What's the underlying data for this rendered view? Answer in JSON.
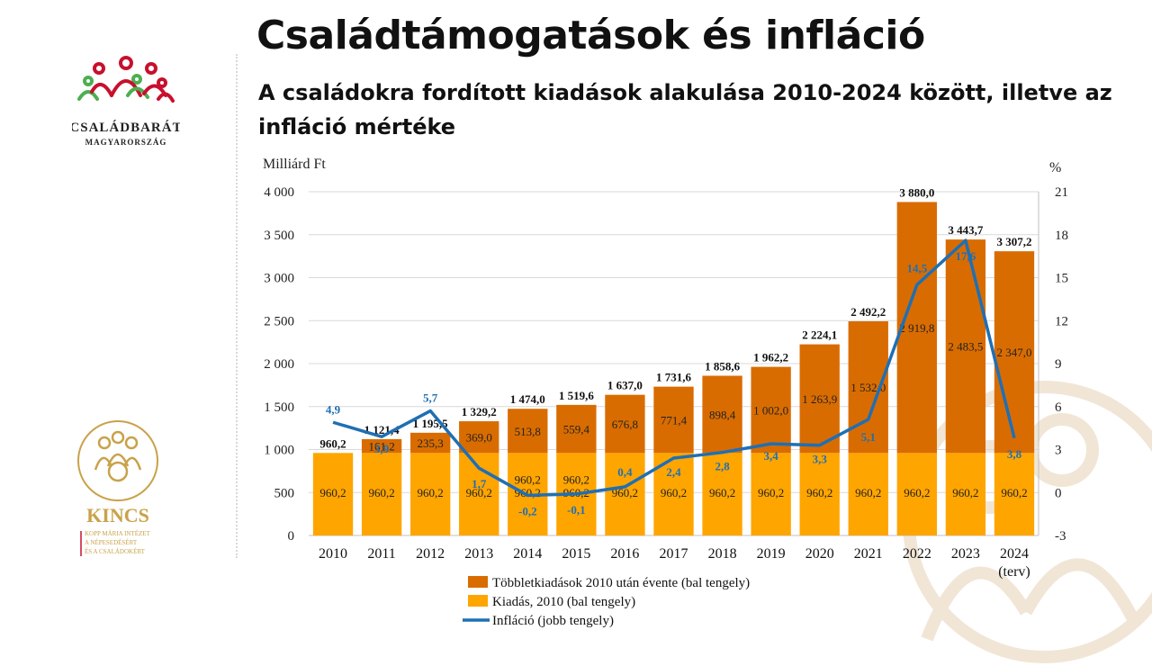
{
  "header": {
    "title": "Családtámogatások és infláció",
    "subtitle": "A családokra fordított kiadások alakulása 2010-2024 között, illetve az infláció mértéke"
  },
  "logos": {
    "top_name": "CSALÁDBARÁT",
    "top_sub": "MAGYARORSZÁG",
    "bottom_name": "KINCS",
    "bottom_sub_1": "KOPP MÁRIA INTÉZET",
    "bottom_sub_2": "A NÉPESEDÉSÉRT",
    "bottom_sub_3": "ÉS A CSALÁDOKÉRT"
  },
  "chart_data": {
    "type": "bar",
    "stacked": true,
    "categories": [
      "2010",
      "2011",
      "2012",
      "2013",
      "2014",
      "2015",
      "2016",
      "2017",
      "2018",
      "2019",
      "2020",
      "2021",
      "2022",
      "2023",
      "2024"
    ],
    "category_sublabels": {
      "2024": "(terv)"
    },
    "left_axis": {
      "label": "Milliárd Ft",
      "ticks": [
        "0",
        "500",
        "1 000",
        "1 500",
        "2 000",
        "2 500",
        "3 000",
        "3 500",
        "4 000"
      ],
      "ylim": [
        0,
        4000
      ]
    },
    "right_axis": {
      "label": "%",
      "ticks": [
        "-3",
        "0",
        "3",
        "6",
        "9",
        "12",
        "15",
        "18",
        "21"
      ],
      "ylim": [
        -3,
        21
      ]
    },
    "series": [
      {
        "name": "Kiadás, 2010 (bal tengely)",
        "axis": "left",
        "color": "#FFA500",
        "values": [
          960.2,
          960.2,
          960.2,
          960.2,
          960.2,
          960.2,
          960.2,
          960.2,
          960.2,
          960.2,
          960.2,
          960.2,
          960.2,
          960.2,
          960.2
        ],
        "labels": [
          "960,2",
          "960,2",
          "960,2",
          "960,2",
          "960,2",
          "960,2",
          "960,2",
          "960,2",
          "960,2",
          "960,2",
          "960,2",
          "960,2",
          "960,2",
          "960,2",
          "960,2"
        ]
      },
      {
        "name": "Többletkiadások 2010 után évente (bal tengely)",
        "axis": "left",
        "color": "#D96C00",
        "values": [
          0,
          161.2,
          235.3,
          369.0,
          513.8,
          559.4,
          676.8,
          771.4,
          898.4,
          1002.0,
          1263.9,
          1532.0,
          2919.8,
          2483.5,
          2347.0
        ],
        "labels": [
          "",
          "161,2",
          "235,3",
          "369,0",
          "513,8",
          "559,4",
          "676,8",
          "771,4",
          "898,4",
          "1 002,0",
          "1 263,9",
          "1 532,0",
          "2 919,8",
          "2 483,5",
          "2 347,0"
        ]
      },
      {
        "name": "Infláció (jobb tengely)",
        "axis": "right",
        "type": "line",
        "color": "#1F6FB4",
        "values": [
          4.9,
          3.9,
          5.7,
          1.7,
          -0.2,
          -0.1,
          0.4,
          2.4,
          2.8,
          3.4,
          3.3,
          5.1,
          14.5,
          17.6,
          3.8
        ],
        "labels": [
          "4,9",
          "3,9",
          "5,7",
          "1,7",
          "-0,2",
          "-0,1",
          "0,4",
          "2,4",
          "2,8",
          "3,4",
          "3,3",
          "5,1",
          "14,5",
          "17,6",
          "3,8"
        ]
      }
    ],
    "totals": [
      960.2,
      1121.4,
      1195.5,
      1329.2,
      1474.0,
      1519.6,
      1637.0,
      1731.6,
      1858.6,
      1962.2,
      2224.1,
      2492.2,
      3880.0,
      3443.7,
      3307.2
    ],
    "total_labels": [
      "960,2",
      "1 121,4",
      "1 195,5",
      "1 329,2",
      "1 474,0",
      "1 519,6",
      "1 637,0",
      "1 731,6",
      "1 858,6",
      "1 962,2",
      "2 224,1",
      "2 492,2",
      "3 880,0",
      "3 443,7",
      "3 307,2"
    ],
    "second_segment_label_2014": "960,2",
    "second_segment_label_2015": "960,2",
    "grid": true,
    "legend_position": "bottom-center"
  }
}
